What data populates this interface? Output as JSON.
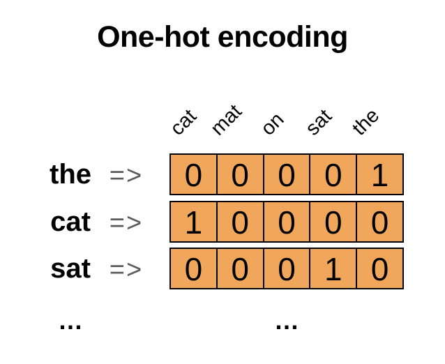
{
  "title": "One-hot encoding",
  "arrow_symbol": "=>",
  "ellipsis_rows": "…",
  "ellipsis_table": "…",
  "encoding_table": {
    "columns": [
      "cat",
      "mat",
      "on",
      "sat",
      "the"
    ],
    "rows": [
      {
        "word": "the",
        "values": [
          "0",
          "0",
          "0",
          "0",
          "1"
        ]
      },
      {
        "word": "cat",
        "values": [
          "1",
          "0",
          "0",
          "0",
          "0"
        ]
      },
      {
        "word": "sat",
        "values": [
          "0",
          "0",
          "0",
          "1",
          "0"
        ]
      }
    ]
  },
  "colors": {
    "cell_fill": "#F1A75B",
    "cell_border": "#000000",
    "arrow": "#5C5C5C",
    "text": "#000000",
    "background": "#FFFFFF"
  }
}
